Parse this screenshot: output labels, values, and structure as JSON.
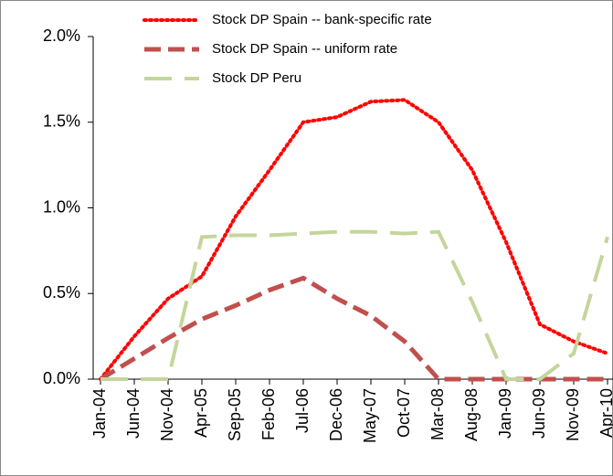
{
  "chart_data": {
    "type": "line",
    "categories": [
      "Jan-04",
      "Jun-04",
      "Nov-04",
      "Apr-05",
      "Sep-05",
      "Feb-06",
      "Jul-06",
      "Dec-06",
      "May-07",
      "Oct-07",
      "Mar-08",
      "Aug-08",
      "Jan-09",
      "Jun-09",
      "Nov-09",
      "Apr-10"
    ],
    "series": [
      {
        "name": "Stock DP Spain -- bank-specific rate",
        "color": "#ff0000",
        "dash": "dotted",
        "values": [
          0,
          0.25,
          0.47,
          0.6,
          0.95,
          1.22,
          1.5,
          1.53,
          1.62,
          1.63,
          1.5,
          1.22,
          0.8,
          0.32,
          0.22,
          0.15
        ]
      },
      {
        "name": "Stock DP Spain -- uniform rate",
        "color": "#c0504d",
        "dash": "dashed",
        "values": [
          0,
          0.12,
          0.24,
          0.35,
          0.43,
          0.52,
          0.59,
          0.47,
          0.37,
          0.22,
          0,
          0,
          0,
          0,
          0,
          0
        ]
      },
      {
        "name": "Stock DP Peru",
        "color": "#c3d69b",
        "dash": "longdash",
        "values": [
          0,
          0,
          0,
          0.83,
          0.84,
          0.84,
          0.85,
          0.86,
          0.86,
          0.85,
          0.86,
          0.45,
          0,
          0,
          0.15,
          0.83
        ]
      }
    ],
    "ylim": [
      0,
      2
    ],
    "yticks": [
      {
        "value": 0,
        "label": "0.0%"
      },
      {
        "value": 0.5,
        "label": "0.5%"
      },
      {
        "value": 1,
        "label": "1.0%"
      },
      {
        "value": 1.5,
        "label": "1.5%"
      },
      {
        "value": 2,
        "label": "2.0%"
      }
    ],
    "legend": "top"
  }
}
